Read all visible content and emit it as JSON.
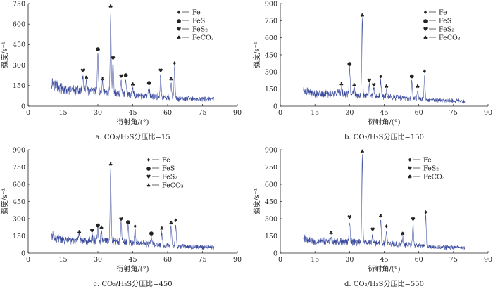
{
  "legend_symbols": {
    "Fe": "♦",
    "FeS": "●",
    "FeS₂": "♥",
    "FeCO₃": "♣"
  },
  "colors": {
    "trace": "#3a4a9c",
    "axis": "#222222"
  },
  "chart_data": [
    {
      "type": "line",
      "caption": "a. CO₂/H₂S分压比=15",
      "xlabel": "衍射角/(°)",
      "ylabel": "强度/s⁻¹",
      "xlim": [
        0,
        90
      ],
      "xticks": [
        0,
        15,
        30,
        45,
        60,
        75,
        90
      ],
      "ylim": [
        0,
        750
      ],
      "yticks": [
        0,
        150,
        300,
        450,
        600,
        750
      ],
      "x_range": [
        10,
        80
      ],
      "baseline": [
        [
          10,
          180
        ],
        [
          15,
          120
        ],
        [
          25,
          110
        ],
        [
          35,
          100
        ],
        [
          45,
          80
        ],
        [
          55,
          70
        ],
        [
          65,
          55
        ],
        [
          80,
          50
        ]
      ],
      "peaks": [
        {
          "x": 23.5,
          "y": 230,
          "label": "FeS₂"
        },
        {
          "x": 25.0,
          "y": 180,
          "label": "FeCO₃"
        },
        {
          "x": 30.0,
          "y": 390,
          "label": "FeS"
        },
        {
          "x": 32.0,
          "y": 170,
          "label": "FeCO₃"
        },
        {
          "x": 35.5,
          "y": 700,
          "label": "FeCO₃"
        },
        {
          "x": 36.5,
          "y": 320,
          "label": "FeS₂"
        },
        {
          "x": 40.0,
          "y": 190,
          "label": "FeS₂"
        },
        {
          "x": 42.0,
          "y": 200,
          "label": "FeS"
        },
        {
          "x": 45.0,
          "y": 130,
          "label": "FeCO₃"
        },
        {
          "x": 52.0,
          "y": 145,
          "label": "FeS"
        },
        {
          "x": 57.0,
          "y": 230,
          "label": "FeS₂"
        },
        {
          "x": 61.5,
          "y": 170,
          "label": "FeCO₃"
        },
        {
          "x": 63.0,
          "y": 285,
          "label": "Fe"
        }
      ],
      "legend": [
        "Fe",
        "FeS",
        "FeS₂",
        "FeCO₃"
      ]
    },
    {
      "type": "line",
      "caption": "b. CO₂/H₂S分压比=150",
      "xlabel": "衍射角/(°)",
      "ylabel": "强度/s⁻¹",
      "xlim": [
        0,
        90
      ],
      "xticks": [
        0,
        15,
        30,
        45,
        60,
        75,
        90
      ],
      "ylim": [
        0,
        900
      ],
      "yticks": [
        0,
        150,
        300,
        450,
        600,
        750,
        900
      ],
      "x_range": [
        10,
        80
      ],
      "baseline": [
        [
          10,
          140
        ],
        [
          15,
          110
        ],
        [
          25,
          110
        ],
        [
          35,
          100
        ],
        [
          45,
          85
        ],
        [
          55,
          70
        ],
        [
          65,
          55
        ],
        [
          80,
          45
        ]
      ],
      "peaks": [
        {
          "x": 26.5,
          "y": 160,
          "label": "FeCO₃"
        },
        {
          "x": 30.0,
          "y": 340,
          "label": "FeS"
        },
        {
          "x": 32.0,
          "y": 150,
          "label": "FeCO₃"
        },
        {
          "x": 35.5,
          "y": 760,
          "label": "FeCO₃"
        },
        {
          "x": 38.5,
          "y": 190,
          "label": "FeS₂"
        },
        {
          "x": 40.5,
          "y": 150,
          "label": "FeS₂"
        },
        {
          "x": 43.5,
          "y": 225,
          "label": "Fe"
        },
        {
          "x": 46.0,
          "y": 140,
          "label": "FeCO₃"
        },
        {
          "x": 57.0,
          "y": 230,
          "label": "FeS"
        },
        {
          "x": 59.5,
          "y": 140,
          "label": "FeCO₃"
        },
        {
          "x": 62.5,
          "y": 270,
          "label": "Fe"
        }
      ],
      "legend": [
        "Fe",
        "FeS",
        "FeS₂",
        "FeCO₃"
      ]
    },
    {
      "type": "line",
      "caption": "c. CO₂/H₂S分压比=450",
      "xlabel": "衍射角/(°)",
      "ylabel": "强度/s⁻¹",
      "xlim": [
        0,
        90
      ],
      "xticks": [
        0,
        15,
        30,
        45,
        60,
        75,
        90
      ],
      "ylim": [
        0,
        900
      ],
      "yticks": [
        0,
        150,
        300,
        450,
        600,
        750,
        900
      ],
      "x_range": [
        10,
        80
      ],
      "baseline": [
        [
          10,
          150
        ],
        [
          15,
          110
        ],
        [
          25,
          110
        ],
        [
          35,
          105
        ],
        [
          45,
          90
        ],
        [
          55,
          75
        ],
        [
          65,
          60
        ],
        [
          80,
          50
        ]
      ],
      "peaks": [
        {
          "x": 22.0,
          "y": 150,
          "label": "FeCO₃"
        },
        {
          "x": 27.5,
          "y": 160,
          "label": "FeS₂"
        },
        {
          "x": 30.0,
          "y": 210,
          "label": "FeS"
        },
        {
          "x": 31.5,
          "y": 190,
          "label": "FeCO₃"
        },
        {
          "x": 35.5,
          "y": 740,
          "label": "FeCO₃"
        },
        {
          "x": 40.0,
          "y": 260,
          "label": "FeS₂"
        },
        {
          "x": 43.0,
          "y": 240,
          "label": "FeS"
        },
        {
          "x": 46.0,
          "y": 200,
          "label": "Fe"
        },
        {
          "x": 53.0,
          "y": 140,
          "label": "FeS"
        },
        {
          "x": 57.5,
          "y": 180,
          "label": "FeCO₃"
        },
        {
          "x": 61.5,
          "y": 230,
          "label": "FeCO₃"
        },
        {
          "x": 63.5,
          "y": 250,
          "label": "Fe"
        }
      ],
      "legend": [
        "Fe",
        "FeS",
        "FeS₂",
        "FeCO₃"
      ]
    },
    {
      "type": "line",
      "caption": "d. CO₂/H₂S分压比=550",
      "xlabel": "衍射角/(°)",
      "ylabel": "强度/s⁻¹",
      "xlim": [
        0,
        90
      ],
      "xticks": [
        0,
        15,
        30,
        45,
        60,
        75,
        90
      ],
      "ylim": [
        0,
        900
      ],
      "yticks": [
        0,
        150,
        300,
        450,
        600,
        750,
        900
      ],
      "x_range": [
        10,
        80
      ],
      "baseline": [
        [
          10,
          130
        ],
        [
          15,
          100
        ],
        [
          25,
          100
        ],
        [
          35,
          95
        ],
        [
          45,
          85
        ],
        [
          55,
          70
        ],
        [
          65,
          55
        ],
        [
          80,
          45
        ]
      ],
      "peaks": [
        {
          "x": 22.0,
          "y": 140,
          "label": "FeCO₃"
        },
        {
          "x": 30.0,
          "y": 280,
          "label": "FeS₂"
        },
        {
          "x": 35.5,
          "y": 850,
          "label": "FeCO₃"
        },
        {
          "x": 40.0,
          "y": 170,
          "label": "FeS₂"
        },
        {
          "x": 43.5,
          "y": 290,
          "label": "FeCO₃"
        },
        {
          "x": 46.0,
          "y": 200,
          "label": "Fe"
        },
        {
          "x": 53.0,
          "y": 135,
          "label": "FeCO₃"
        },
        {
          "x": 57.5,
          "y": 260,
          "label": "FeS₂"
        },
        {
          "x": 63.0,
          "y": 320,
          "label": "Fe"
        }
      ],
      "legend": [
        "Fe",
        "FeS₂",
        "FeCO₃"
      ]
    }
  ]
}
